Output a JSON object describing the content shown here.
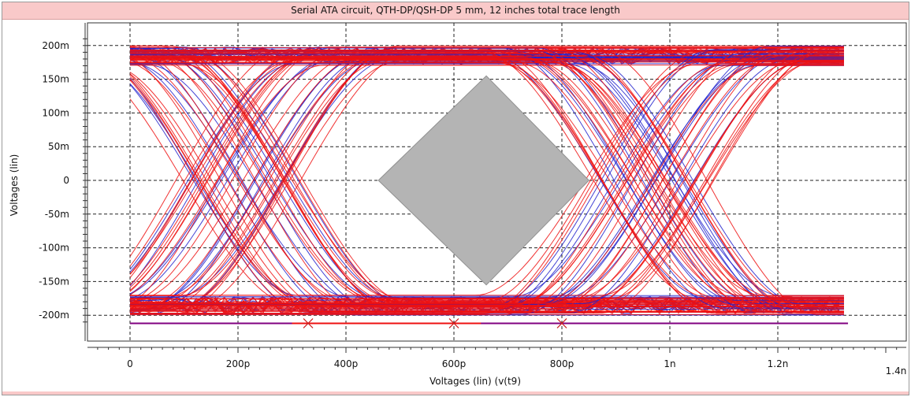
{
  "chart_data": {
    "type": "line",
    "title": "Serial ATA circuit, QTH-DP/QSH-DP 5 mm, 12 inches total trace length",
    "xlabel": "Voltages (lin) (v(t9)",
    "ylabel": "Voltages (lin)",
    "x_ticks": [
      "0",
      "200p",
      "400p",
      "600p",
      "800p",
      "1n",
      "1.2n",
      "1.4n"
    ],
    "y_ticks": [
      "200m",
      "150m",
      "100m",
      "50m",
      "0",
      "-50m",
      "-100m",
      "-150m",
      "-200m"
    ],
    "xlim": [
      0,
      1.33e-09
    ],
    "ylim": [
      -0.21,
      0.21
    ],
    "grid": true,
    "series": [
      {
        "color": "#ee1111",
        "style": "eye-diagram traces"
      },
      {
        "color": "#2222cc",
        "style": "eye-diagram traces"
      }
    ],
    "mask": {
      "shape": "diamond",
      "color": "#b4b4b4",
      "points": [
        [
          4.6e-10,
          0
        ],
        [
          6.6e-10,
          0.155
        ],
        [
          8.5e-10,
          0
        ],
        [
          6.6e-10,
          -0.155
        ]
      ]
    },
    "reference_line": {
      "y": -0.212,
      "color": "#800080"
    },
    "markers": [
      {
        "x": 3.3e-10,
        "y": -0.212
      },
      {
        "x": 6e-10,
        "y": -0.212
      },
      {
        "x": 8e-10,
        "y": -0.212
      }
    ],
    "colors": {
      "trace_a": "#ee1111",
      "trace_b": "#2222cc",
      "mask": "#b4b4b4",
      "title_bar": "#f9c9c9",
      "reference_line": "#800080"
    }
  }
}
